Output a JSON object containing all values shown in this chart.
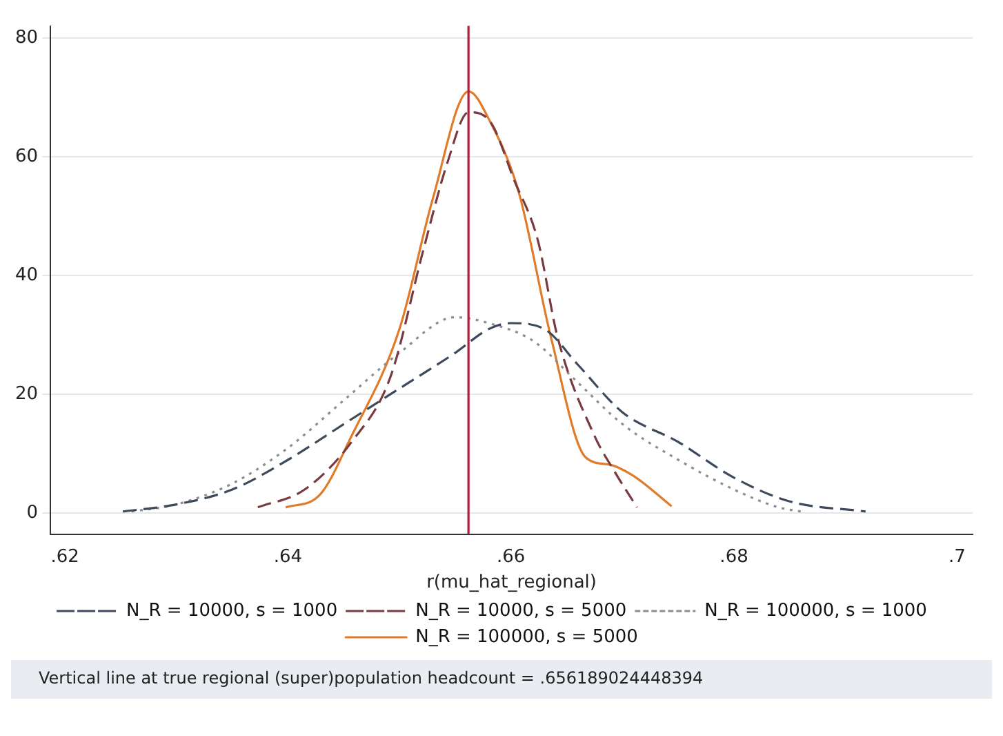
{
  "chart_data": {
    "type": "line",
    "xlabel": "r(mu_hat_regional)",
    "xlim": [
      0.6187,
      0.7014
    ],
    "xticks": [
      {
        "value": 0.62,
        "label": ".62"
      },
      {
        "value": 0.64,
        "label": ".64"
      },
      {
        "value": 0.66,
        "label": ".66"
      },
      {
        "value": 0.68,
        "label": ".68"
      },
      {
        "value": 0.7,
        "label": ".7"
      }
    ],
    "ylim": [
      -3.5,
      82
    ],
    "yticks": [
      0,
      20,
      40,
      60,
      80
    ],
    "grid": "y",
    "legend": "bottom",
    "marker": "none",
    "ref_lines": [
      {
        "axis": "x",
        "value": 0.656189,
        "color": "#b0203c"
      }
    ],
    "annotations": [
      "Vertical line at true regional (super)population headcount = .656189024448394"
    ],
    "series": [
      {
        "name": "N_R = 10000, s = 1000",
        "color": "#3c4a5c",
        "line_style": "dashed",
        "x": [
          0.6252,
          0.63,
          0.635,
          0.64,
          0.645,
          0.65,
          0.655,
          0.658,
          0.66,
          0.663,
          0.666,
          0.67,
          0.675,
          0.68,
          0.685,
          0.6918
        ],
        "values": [
          0.3,
          1.5,
          4,
          9,
          15,
          21,
          27,
          31,
          32,
          31,
          25,
          17,
          12,
          6,
          2,
          0.3
        ]
      },
      {
        "name": "N_R = 10000, s = 5000",
        "color": "#7a3b40",
        "line_style": "dashed",
        "x": [
          0.6373,
          0.6415,
          0.6457,
          0.6492,
          0.6521,
          0.6543,
          0.6562,
          0.6581,
          0.6603,
          0.6624,
          0.6642,
          0.6675,
          0.6693,
          0.6713
        ],
        "values": [
          1,
          4,
          12,
          23,
          44,
          59,
          67.5,
          66,
          56,
          46,
          29.5,
          13,
          7,
          1
        ]
      },
      {
        "name": "N_R = 100000, s = 1000",
        "color": "#8a8f96",
        "line_style": "dotted",
        "x": [
          0.626,
          0.63,
          0.635,
          0.64,
          0.645,
          0.65,
          0.655,
          0.658,
          0.662,
          0.666,
          0.67,
          0.675,
          0.68,
          0.684,
          0.686
        ],
        "values": [
          0.3,
          1.5,
          5,
          11,
          19,
          27,
          33,
          32,
          29,
          22,
          15,
          9,
          4,
          1,
          0.3
        ]
      },
      {
        "name": "N_R = 100000, s = 5000",
        "color": "#e07b2a",
        "line_style": "solid",
        "x": [
          0.6398,
          0.6428,
          0.6457,
          0.65,
          0.653,
          0.6562,
          0.6581,
          0.6607,
          0.6636,
          0.6667,
          0.6688,
          0.6709,
          0.6744
        ],
        "values": [
          1,
          3,
          13,
          31,
          53,
          71,
          66,
          54,
          29.5,
          9.4,
          8.2,
          6.4,
          1.2
        ]
      }
    ]
  }
}
